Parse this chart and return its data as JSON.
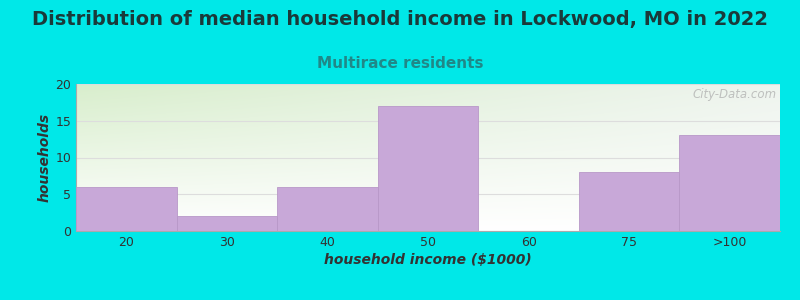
{
  "title": "Distribution of median household income in Lockwood, MO in 2022",
  "subtitle": "Multirace residents",
  "xlabel": "household income ($1000)",
  "ylabel": "households",
  "categories": [
    "20",
    "30",
    "40",
    "50",
    "60",
    "75",
    ">100"
  ],
  "values": [
    6,
    2,
    6,
    17,
    0,
    8,
    13
  ],
  "bar_color": "#c8a8d8",
  "bar_edge_color": "#b898c8",
  "bg_color": "#00e8e8",
  "plot_bg_color_topleft": "#d8eecc",
  "plot_bg_color_topright": "#eef4ee",
  "plot_bg_color_bottom": "#ffffff",
  "ylim": [
    0,
    20
  ],
  "yticks": [
    0,
    5,
    10,
    15,
    20
  ],
  "title_fontsize": 14,
  "subtitle_fontsize": 11,
  "title_color": "#1a3a3a",
  "subtitle_color": "#208888",
  "axis_label_fontsize": 10,
  "tick_fontsize": 9,
  "watermark": "City-Data.com",
  "watermark_color": "#aaaaaa",
  "grid_color": "#dddddd"
}
